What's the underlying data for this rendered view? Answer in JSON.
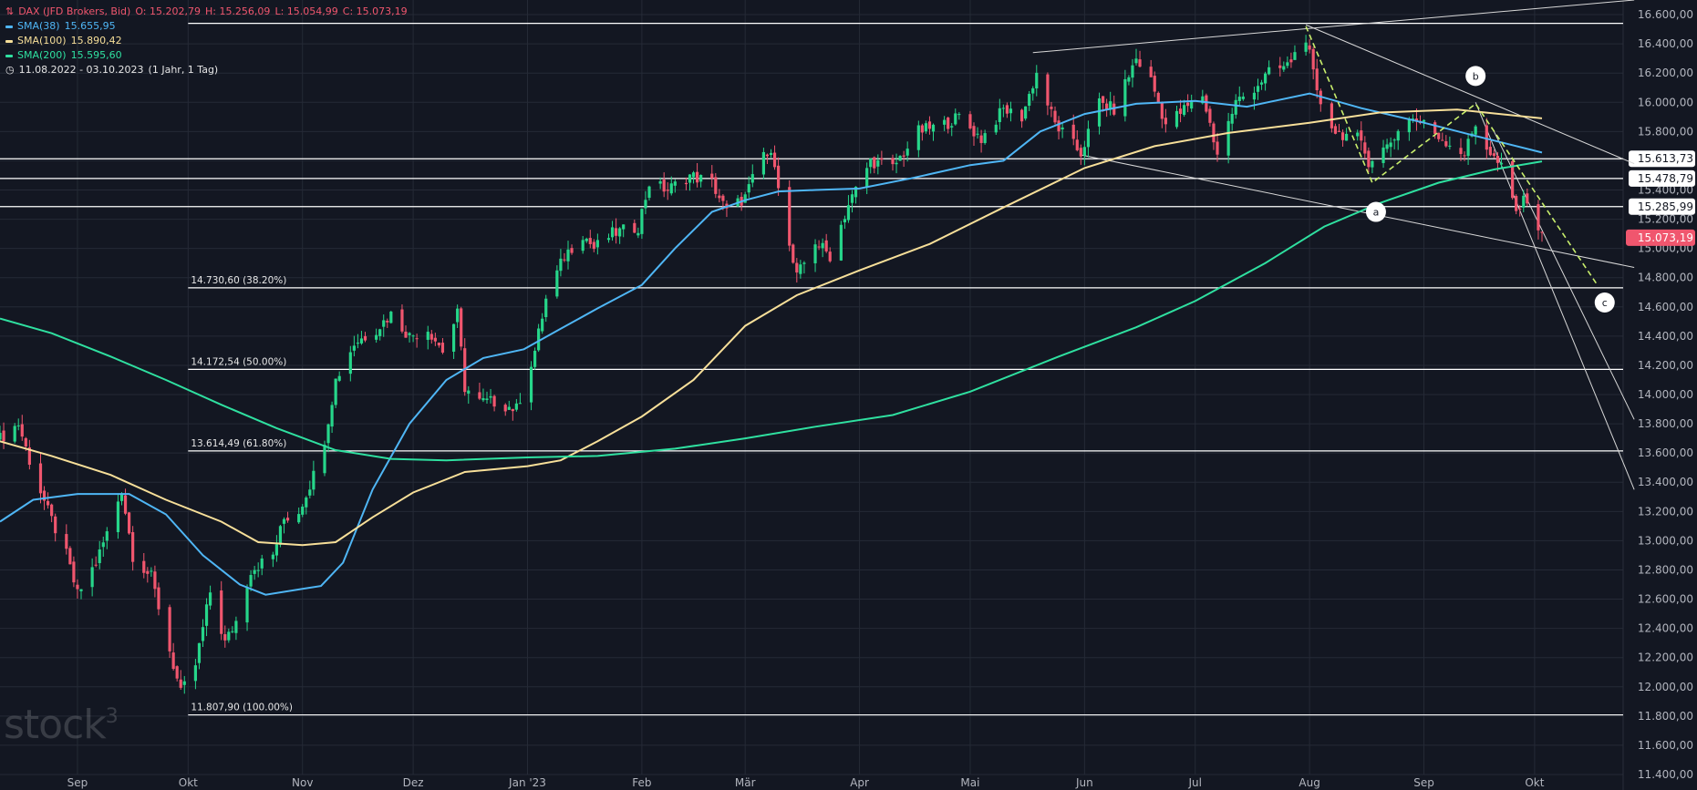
{
  "header": {
    "instrument": "DAX (JFD Brokers, Bid)",
    "open": "O: 15.202,79",
    "high": "H: 15.256,09",
    "low": "L: 15.054,99",
    "close": "C: 15.073,19",
    "range": "11.08.2022 - 03.10.2023",
    "range_detail": "(1 Jahr, 1 Tag)"
  },
  "indicators": [
    {
      "label": "SMA(38)",
      "value": "15.655,95",
      "color": "#4fb6f5"
    },
    {
      "label": "SMA(100)",
      "value": "15.890,42",
      "color": "#f7df99"
    },
    {
      "label": "SMA(200)",
      "value": "15.595,60",
      "color": "#2fe0a0"
    }
  ],
  "watermark": "stock3",
  "colors": {
    "up": "#26d68a",
    "down": "#f0566e",
    "background": "#131722",
    "grid": "#252a36",
    "last_price_label": "#f0566e",
    "fib_line": "#ffffff",
    "abc_dashed": "#c9ef6c"
  },
  "chart_data": {
    "type": "candlestick",
    "ylim": [
      11400,
      16700
    ],
    "y_ticks": [
      "16.600,00",
      "16.400,00",
      "16.200,00",
      "16.000,00",
      "15.800,00",
      "15.600,00",
      "15.400,00",
      "15.200,00",
      "15.000,00",
      "14.800,00",
      "14.600,00",
      "14.400,00",
      "14.200,00",
      "14.000,00",
      "13.800,00",
      "13.600,00",
      "13.400,00",
      "13.200,00",
      "13.000,00",
      "12.800,00",
      "12.600,00",
      "12.400,00",
      "12.200,00",
      "12.000,00",
      "11.800,00",
      "11.600,00",
      "11.400,00"
    ],
    "x_range": [
      "2022-08-11",
      "2023-10-25"
    ],
    "x_ticks": [
      {
        "label": "Sep",
        "date": "2022-09-01"
      },
      {
        "label": "Okt",
        "date": "2022-10-01"
      },
      {
        "label": "Nov",
        "date": "2022-11-01"
      },
      {
        "label": "Dez",
        "date": "2022-12-01"
      },
      {
        "label": "Jan '23",
        "date": "2023-01-01"
      },
      {
        "label": "Feb",
        "date": "2023-02-01"
      },
      {
        "label": "Mär",
        "date": "2023-03-01"
      },
      {
        "label": "Apr",
        "date": "2023-04-01"
      },
      {
        "label": "Mai",
        "date": "2023-05-01"
      },
      {
        "label": "Jun",
        "date": "2023-06-01"
      },
      {
        "label": "Jul",
        "date": "2023-07-01"
      },
      {
        "label": "Aug",
        "date": "2023-08-01"
      },
      {
        "label": "Sep",
        "date": "2023-09-01"
      },
      {
        "label": "Okt",
        "date": "2023-10-01"
      }
    ],
    "close_path": [
      [
        "2022-08-11",
        13700
      ],
      [
        "2022-08-16",
        13800
      ],
      [
        "2022-08-19",
        13550
      ],
      [
        "2022-08-24",
        13200
      ],
      [
        "2022-08-29",
        12900
      ],
      [
        "2022-09-01",
        12630
      ],
      [
        "2022-09-06",
        12850
      ],
      [
        "2022-09-09",
        13050
      ],
      [
        "2022-09-13",
        13350
      ],
      [
        "2022-09-16",
        12900
      ],
      [
        "2022-09-21",
        12750
      ],
      [
        "2022-09-26",
        12250
      ],
      [
        "2022-09-29",
        11950
      ],
      [
        "2022-10-03",
        12150
      ],
      [
        "2022-10-07",
        12650
      ],
      [
        "2022-10-11",
        12300
      ],
      [
        "2022-10-14",
        12450
      ],
      [
        "2022-10-18",
        12800
      ],
      [
        "2022-10-24",
        12900
      ],
      [
        "2022-10-27",
        13150
      ],
      [
        "2022-10-31",
        13200
      ],
      [
        "2022-11-04",
        13450
      ],
      [
        "2022-11-07",
        13700
      ],
      [
        "2022-11-10",
        14100
      ],
      [
        "2022-11-15",
        14350
      ],
      [
        "2022-11-21",
        14450
      ],
      [
        "2022-11-25",
        14550
      ],
      [
        "2022-11-30",
        14400
      ],
      [
        "2022-12-05",
        14450
      ],
      [
        "2022-12-09",
        14300
      ],
      [
        "2022-12-13",
        14550
      ],
      [
        "2022-12-15",
        14050
      ],
      [
        "2022-12-19",
        13950
      ],
      [
        "2022-12-23",
        13950
      ],
      [
        "2022-12-29",
        13900
      ],
      [
        "2023-01-03",
        14300
      ],
      [
        "2023-01-06",
        14650
      ],
      [
        "2023-01-11",
        14950
      ],
      [
        "2023-01-16",
        15100
      ],
      [
        "2023-01-19",
        15000
      ],
      [
        "2023-01-24",
        15100
      ],
      [
        "2023-01-31",
        15150
      ],
      [
        "2023-02-03",
        15450
      ],
      [
        "2023-02-08",
        15400
      ],
      [
        "2023-02-14",
        15500
      ],
      [
        "2023-02-20",
        15450
      ],
      [
        "2023-02-24",
        15250
      ],
      [
        "2023-03-01",
        15350
      ],
      [
        "2023-03-06",
        15650
      ],
      [
        "2023-03-09",
        15600
      ],
      [
        "2023-03-13",
        15000
      ],
      [
        "2023-03-15",
        14800
      ],
      [
        "2023-03-20",
        15050
      ],
      [
        "2023-03-24",
        14950
      ],
      [
        "2023-03-29",
        15300
      ],
      [
        "2023-04-04",
        15600
      ],
      [
        "2023-04-10",
        15550
      ],
      [
        "2023-04-17",
        15800
      ],
      [
        "2023-04-24",
        15850
      ],
      [
        "2023-04-28",
        15900
      ],
      [
        "2023-05-04",
        15750
      ],
      [
        "2023-05-10",
        15950
      ],
      [
        "2023-05-15",
        15900
      ],
      [
        "2023-05-19",
        16200
      ],
      [
        "2023-05-24",
        15850
      ],
      [
        "2023-05-31",
        15650
      ],
      [
        "2023-06-05",
        16000
      ],
      [
        "2023-06-09",
        15950
      ],
      [
        "2023-06-15",
        16300
      ],
      [
        "2023-06-19",
        16150
      ],
      [
        "2023-06-23",
        15850
      ],
      [
        "2023-06-28",
        15950
      ],
      [
        "2023-07-03",
        16050
      ],
      [
        "2023-07-07",
        15650
      ],
      [
        "2023-07-12",
        16000
      ],
      [
        "2023-07-17",
        16100
      ],
      [
        "2023-07-21",
        16200
      ],
      [
        "2023-07-26",
        16250
      ],
      [
        "2023-07-31",
        16450
      ],
      [
        "2023-08-03",
        16050
      ],
      [
        "2023-08-08",
        15800
      ],
      [
        "2023-08-14",
        15750
      ],
      [
        "2023-08-17",
        15600
      ],
      [
        "2023-08-22",
        15700
      ],
      [
        "2023-08-28",
        15900
      ],
      [
        "2023-09-01",
        15850
      ],
      [
        "2023-09-06",
        15750
      ],
      [
        "2023-09-12",
        15650
      ],
      [
        "2023-09-15",
        15850
      ],
      [
        "2023-09-19",
        15650
      ],
      [
        "2023-09-22",
        15550
      ],
      [
        "2023-09-26",
        15250
      ],
      [
        "2023-09-29",
        15350
      ],
      [
        "2023-10-03",
        15073
      ]
    ],
    "sma": [
      {
        "name": "SMA(38)",
        "color": "#4fb6f5",
        "points": [
          [
            "2022-08-11",
            13130
          ],
          [
            "2022-08-20",
            13280
          ],
          [
            "2022-09-01",
            13320
          ],
          [
            "2022-09-15",
            13320
          ],
          [
            "2022-09-25",
            13180
          ],
          [
            "2022-10-05",
            12900
          ],
          [
            "2022-10-15",
            12700
          ],
          [
            "2022-10-22",
            12630
          ],
          [
            "2022-11-01",
            12670
          ],
          [
            "2022-11-06",
            12690
          ],
          [
            "2022-11-12",
            12850
          ],
          [
            "2022-11-20",
            13350
          ],
          [
            "2022-11-30",
            13800
          ],
          [
            "2022-12-10",
            14100
          ],
          [
            "2022-12-20",
            14250
          ],
          [
            "2022-12-31",
            14310
          ],
          [
            "2023-01-10",
            14450
          ],
          [
            "2023-01-20",
            14590
          ],
          [
            "2023-02-01",
            14750
          ],
          [
            "2023-02-10",
            15000
          ],
          [
            "2023-02-20",
            15250
          ],
          [
            "2023-03-01",
            15330
          ],
          [
            "2023-03-10",
            15390
          ],
          [
            "2023-03-20",
            15400
          ],
          [
            "2023-04-01",
            15410
          ],
          [
            "2023-04-15",
            15480
          ],
          [
            "2023-05-01",
            15570
          ],
          [
            "2023-05-10",
            15600
          ],
          [
            "2023-05-20",
            15800
          ],
          [
            "2023-06-01",
            15920
          ],
          [
            "2023-06-15",
            15990
          ],
          [
            "2023-07-01",
            16010
          ],
          [
            "2023-07-15",
            15970
          ],
          [
            "2023-08-01",
            16060
          ],
          [
            "2023-08-15",
            15960
          ],
          [
            "2023-09-01",
            15860
          ],
          [
            "2023-09-15",
            15770
          ],
          [
            "2023-10-03",
            15656
          ]
        ]
      },
      {
        "name": "SMA(100)",
        "color": "#f7df99",
        "points": [
          [
            "2022-08-11",
            13680
          ],
          [
            "2022-08-25",
            13580
          ],
          [
            "2022-09-10",
            13450
          ],
          [
            "2022-09-25",
            13280
          ],
          [
            "2022-10-10",
            13130
          ],
          [
            "2022-10-20",
            12990
          ],
          [
            "2022-11-01",
            12970
          ],
          [
            "2022-11-10",
            12990
          ],
          [
            "2022-11-20",
            13160
          ],
          [
            "2022-12-01",
            13330
          ],
          [
            "2022-12-15",
            13470
          ],
          [
            "2023-01-01",
            13510
          ],
          [
            "2023-01-10",
            13550
          ],
          [
            "2023-01-20",
            13680
          ],
          [
            "2023-02-01",
            13850
          ],
          [
            "2023-02-15",
            14100
          ],
          [
            "2023-03-01",
            14470
          ],
          [
            "2023-03-15",
            14680
          ],
          [
            "2023-04-01",
            14850
          ],
          [
            "2023-04-20",
            15030
          ],
          [
            "2023-05-10",
            15280
          ],
          [
            "2023-06-01",
            15550
          ],
          [
            "2023-06-20",
            15700
          ],
          [
            "2023-07-10",
            15790
          ],
          [
            "2023-08-01",
            15860
          ],
          [
            "2023-08-20",
            15930
          ],
          [
            "2023-09-10",
            15950
          ],
          [
            "2023-10-03",
            15890
          ]
        ]
      },
      {
        "name": "SMA(200)",
        "color": "#2fe0a0",
        "points": [
          [
            "2022-08-11",
            14520
          ],
          [
            "2022-08-25",
            14420
          ],
          [
            "2022-09-10",
            14260
          ],
          [
            "2022-09-25",
            14100
          ],
          [
            "2022-10-10",
            13930
          ],
          [
            "2022-10-25",
            13770
          ],
          [
            "2022-11-10",
            13620
          ],
          [
            "2022-11-25",
            13560
          ],
          [
            "2022-12-10",
            13550
          ],
          [
            "2023-01-01",
            13570
          ],
          [
            "2023-01-20",
            13580
          ],
          [
            "2023-02-10",
            13630
          ],
          [
            "2023-03-01",
            13700
          ],
          [
            "2023-03-20",
            13780
          ],
          [
            "2023-04-10",
            13860
          ],
          [
            "2023-05-01",
            14020
          ],
          [
            "2023-05-25",
            14260
          ],
          [
            "2023-06-15",
            14460
          ],
          [
            "2023-07-01",
            14640
          ],
          [
            "2023-07-20",
            14900
          ],
          [
            "2023-08-05",
            15150
          ],
          [
            "2023-08-20",
            15310
          ],
          [
            "2023-09-05",
            15450
          ],
          [
            "2023-09-20",
            15540
          ],
          [
            "2023-10-03",
            15596
          ]
        ]
      }
    ],
    "fibonacci": [
      {
        "label": "14.730,60 (38.20%)",
        "value": 14730.6
      },
      {
        "label": "14.172,54 (50.00%)",
        "value": 14172.54
      },
      {
        "label": "13.614,49 (61.80%)",
        "value": 13614.49
      },
      {
        "label": "11.807,90 (100.00%)",
        "value": 11807.9
      }
    ],
    "horizontal_levels": [
      {
        "label": "15.613,73",
        "value": 15613.73
      },
      {
        "label": "15.478,79",
        "value": 15478.79
      },
      {
        "label": "15.285,99",
        "value": 15285.99
      }
    ],
    "top_line": 16540,
    "last_price": {
      "label": "15.073,19",
      "value": 15073.19
    },
    "wave_labels": [
      {
        "label": "a",
        "date": "2023-08-19",
        "value": 15250
      },
      {
        "label": "b",
        "date": "2023-09-15",
        "value": 16180
      },
      {
        "label": "c",
        "date": "2023-10-20",
        "value": 14630
      }
    ],
    "dashed_zigzag": [
      [
        "2023-07-31",
        16520
      ],
      [
        "2023-08-18",
        15450
      ],
      [
        "2023-09-15",
        15990
      ],
      [
        "2023-10-18",
        14750
      ]
    ],
    "trendlines": [
      [
        [
          "2023-05-18",
          16340
        ],
        [
          "2023-10-28",
          16700
        ]
      ],
      [
        [
          "2023-05-31",
          15640
        ],
        [
          "2023-10-28",
          14870
        ]
      ],
      [
        [
          "2023-07-31",
          16530
        ],
        [
          "2023-10-28",
          15580
        ]
      ],
      [
        [
          "2023-09-15",
          16000
        ],
        [
          "2023-10-28",
          13350
        ]
      ],
      [
        [
          "2023-09-20",
          15800
        ],
        [
          "2023-10-28",
          13830
        ]
      ]
    ]
  }
}
